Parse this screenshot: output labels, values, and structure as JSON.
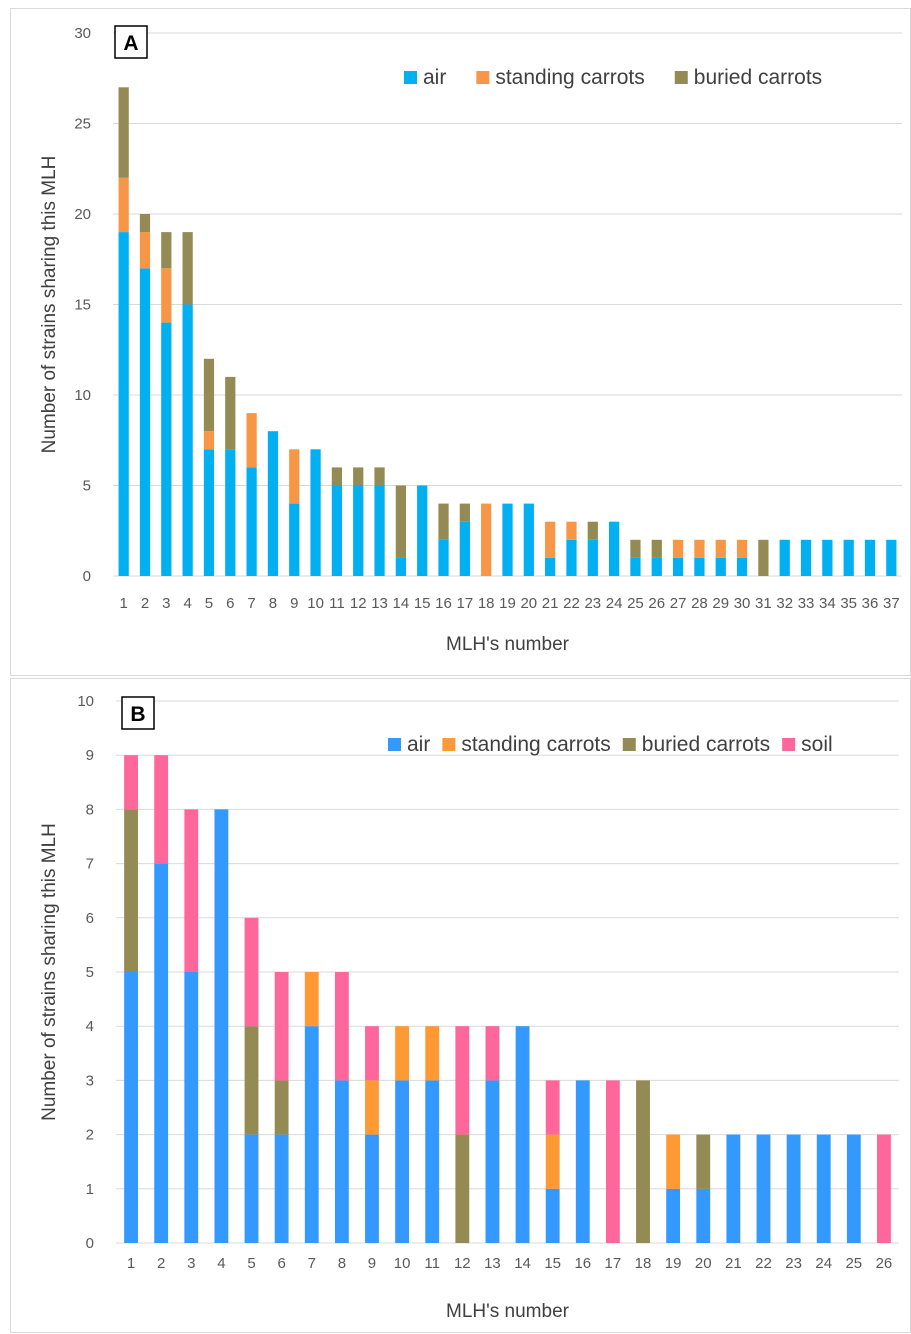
{
  "chart_data": [
    {
      "panel_label": "A",
      "type": "bar",
      "stacked": true,
      "xlabel": "MLH's number",
      "ylabel": "Number of strains sharing this MLH",
      "ylim": [
        0,
        30
      ],
      "yticks": [
        0,
        5,
        10,
        15,
        20,
        25,
        30
      ],
      "grid": true,
      "legend_position": "top-right",
      "categories": [
        "1",
        "2",
        "3",
        "4",
        "5",
        "6",
        "7",
        "8",
        "9",
        "10",
        "11",
        "12",
        "13",
        "14",
        "15",
        "16",
        "17",
        "18",
        "19",
        "20",
        "21",
        "22",
        "23",
        "24",
        "25",
        "26",
        "27",
        "28",
        "29",
        "30",
        "31",
        "32",
        "33",
        "34",
        "35",
        "36",
        "37"
      ],
      "series": [
        {
          "name": "air",
          "color": "#00b0f0",
          "values": [
            19,
            17,
            14,
            15,
            7,
            7,
            6,
            8,
            4,
            7,
            5,
            5,
            5,
            1,
            5,
            2,
            3,
            0,
            4,
            4,
            1,
            2,
            2,
            3,
            1,
            1,
            1,
            1,
            1,
            1,
            0,
            2,
            2,
            2,
            2,
            2,
            2
          ]
        },
        {
          "name": "standing carrots",
          "color": "#f79646",
          "values": [
            3,
            2,
            3,
            0,
            1,
            0,
            3,
            0,
            3,
            0,
            0,
            0,
            0,
            0,
            0,
            0,
            0,
            4,
            0,
            0,
            2,
            1,
            0,
            0,
            0,
            0,
            1,
            1,
            1,
            1,
            0,
            0,
            0,
            0,
            0,
            0,
            0
          ]
        },
        {
          "name": "buried carrots",
          "color": "#948a54",
          "values": [
            5,
            1,
            2,
            4,
            4,
            4,
            0,
            0,
            0,
            0,
            1,
            1,
            1,
            4,
            0,
            2,
            1,
            0,
            0,
            0,
            0,
            0,
            1,
            0,
            1,
            1,
            0,
            0,
            0,
            0,
            2,
            0,
            0,
            0,
            0,
            0,
            0
          ]
        }
      ]
    },
    {
      "panel_label": "B",
      "type": "bar",
      "stacked": true,
      "xlabel": "MLH's number",
      "ylabel": "Number of strains sharing this MLH",
      "ylim": [
        0,
        10
      ],
      "yticks": [
        0,
        1,
        2,
        3,
        4,
        5,
        6,
        7,
        8,
        9,
        10
      ],
      "grid": true,
      "legend_position": "top-right",
      "categories": [
        "1",
        "2",
        "3",
        "4",
        "5",
        "6",
        "7",
        "8",
        "9",
        "10",
        "11",
        "12",
        "13",
        "14",
        "15",
        "16",
        "17",
        "18",
        "19",
        "20",
        "21",
        "22",
        "23",
        "24",
        "25",
        "26"
      ],
      "series": [
        {
          "name": "air",
          "color": "#3399ff",
          "values": [
            5,
            7,
            5,
            8,
            2,
            2,
            4,
            3,
            2,
            3,
            3,
            0,
            3,
            4,
            1,
            3,
            0,
            0,
            1,
            1,
            2,
            2,
            2,
            2,
            2,
            0
          ]
        },
        {
          "name": "standing carrots",
          "color": "#ff9933",
          "values": [
            0,
            0,
            0,
            0,
            0,
            0,
            1,
            0,
            1,
            1,
            1,
            0,
            0,
            0,
            1,
            0,
            0,
            0,
            1,
            0,
            0,
            0,
            0,
            0,
            0,
            0
          ]
        },
        {
          "name": "buried carrots",
          "color": "#948a54",
          "values": [
            3,
            0,
            0,
            0,
            2,
            1,
            0,
            0,
            0,
            0,
            0,
            2,
            0,
            0,
            0,
            0,
            0,
            3,
            0,
            1,
            0,
            0,
            0,
            0,
            0,
            0
          ]
        },
        {
          "name": "soil",
          "color": "#ff6699",
          "values": [
            1,
            2,
            3,
            0,
            2,
            2,
            0,
            2,
            1,
            0,
            0,
            2,
            1,
            0,
            1,
            0,
            3,
            0,
            0,
            0,
            0,
            0,
            0,
            0,
            0,
            2
          ]
        }
      ]
    }
  ]
}
